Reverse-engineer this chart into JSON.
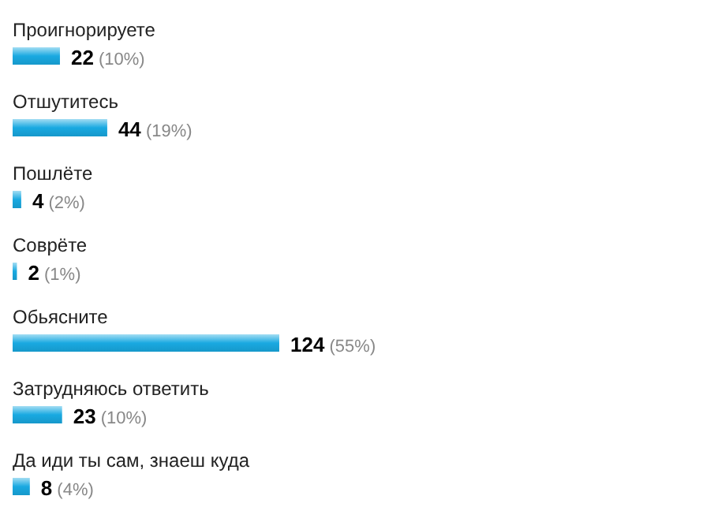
{
  "chart_data": {
    "type": "bar",
    "orientation": "horizontal",
    "categories": [
      "Проигнорируете",
      "Отшутитесь",
      "Пошлёте",
      "Соврёте",
      "Обьясните",
      "Затрудняюсь ответить",
      "Да иди ты сам, знаеш куда"
    ],
    "values": [
      22,
      44,
      4,
      2,
      124,
      23,
      8
    ],
    "value_labels": [
      "22 (10%)",
      "44 (19%)",
      "4 (2%)",
      "2 (1%)",
      "124 (55%)",
      "23 (10%)",
      "8 (4%)"
    ],
    "color": "#19a9e1"
  }
}
